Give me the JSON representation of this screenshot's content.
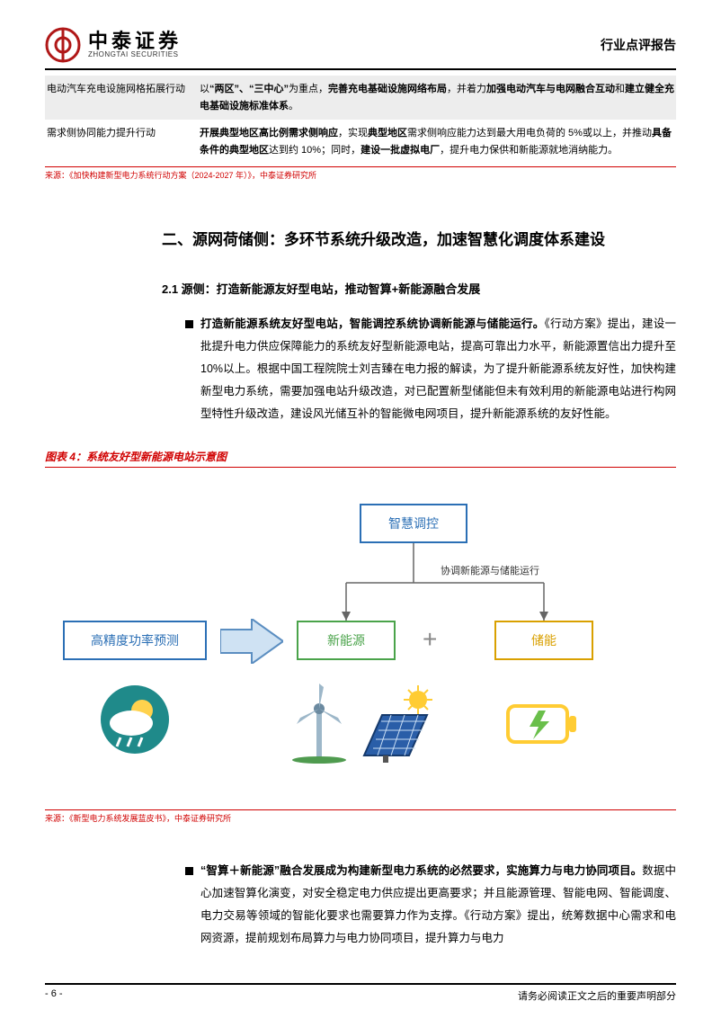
{
  "header": {
    "logo_cn": "中泰证券",
    "logo_en": "ZHONGTAI SECURITIES",
    "doc_type": "行业点评报告"
  },
  "table": {
    "rows": [
      {
        "shade": true,
        "c1": "电动汽车充电设施网格拓展行动",
        "c2_html": "以<b>“两区”、“三中心”</b>为重点，<b>完善充电基础设施网络布局</b>，并着力<b>加强电动汽车与电网融合互动</b>和<b>建立健全充电基础设施标准体系</b>。"
      },
      {
        "shade": false,
        "c1": "需求侧协同能力提升行动",
        "c2_html": "<b>开展典型地区高比例需求侧响应</b>，实现<b>典型地区</b>需求侧响应能力达到最大用电负荷的 5%或以上，并推动<b>具备条件的典型地区</b>达到约 10%；同时，<b>建设一批虚拟电厂</b>，提升电力保供和新能源就地消纳能力。"
      }
    ],
    "source": "来源：《加快构建新型电力系统行动方案（2024-2027 年）》，中泰证券研究所"
  },
  "section": {
    "heading": "二、源网荷储侧：多环节系统升级改造，加速智慧化调度体系建设",
    "sub": "2.1 源侧：打造新能源友好型电站，推动智算+新能源融合发展",
    "bullet1_lead": "打造新能源系统友好型电站，智能调控系统协调新能源与储能运行。",
    "bullet1_body": "《行动方案》提出，建设一批提升电力供应保障能力的系统友好型新能源电站，提高可靠出力水平，新能源置信出力提升至 10%以上。根据中国工程院院士刘吉臻在电力报的解读，为了提升新能源系统友好性，加快构建新型电力系统，需要加强电站升级改造，对已配置新型储能但未有效利用的新能源电站进行构网型特性升级改造，建设风光储互补的智能微电网项目，提升新能源系统的友好性能。"
  },
  "figure": {
    "title": "图表 4：系统友好型新能源电站示意图",
    "nodes": {
      "top": "智慧调控",
      "coord": "协调新能源与储能运行",
      "left": "高精度功率预测",
      "mid_l": "新能源",
      "mid_r": "储能",
      "plus": "+"
    },
    "colors": {
      "top_border": "#2b6fb5",
      "left_border": "#2b6fb5",
      "midl_border": "#4aa34a",
      "midr_border": "#d9a000",
      "arrow_fill": "#cfe2f3",
      "arrow_stroke": "#5b8ec1"
    },
    "source": "来源：《新型电力系统发展蓝皮书》，中泰证券研究所"
  },
  "bullet2": {
    "lead": "“智算＋新能源”融合发展成为构建新型电力系统的必然要求，实施算力与电力协同项目。",
    "body": "数据中心加速智算化演变，对安全稳定电力供应提出更高要求；并且能源管理、智能电网、智能调度、电力交易等领域的智能化要求也需要算力作为支撑。《行动方案》提出，统筹数据中心需求和电网资源，提前规划布局算力与电力协同项目，提升算力与电力"
  },
  "footer": {
    "page": "- 6 -",
    "note": "请务必阅读正文之后的重要声明部分"
  }
}
